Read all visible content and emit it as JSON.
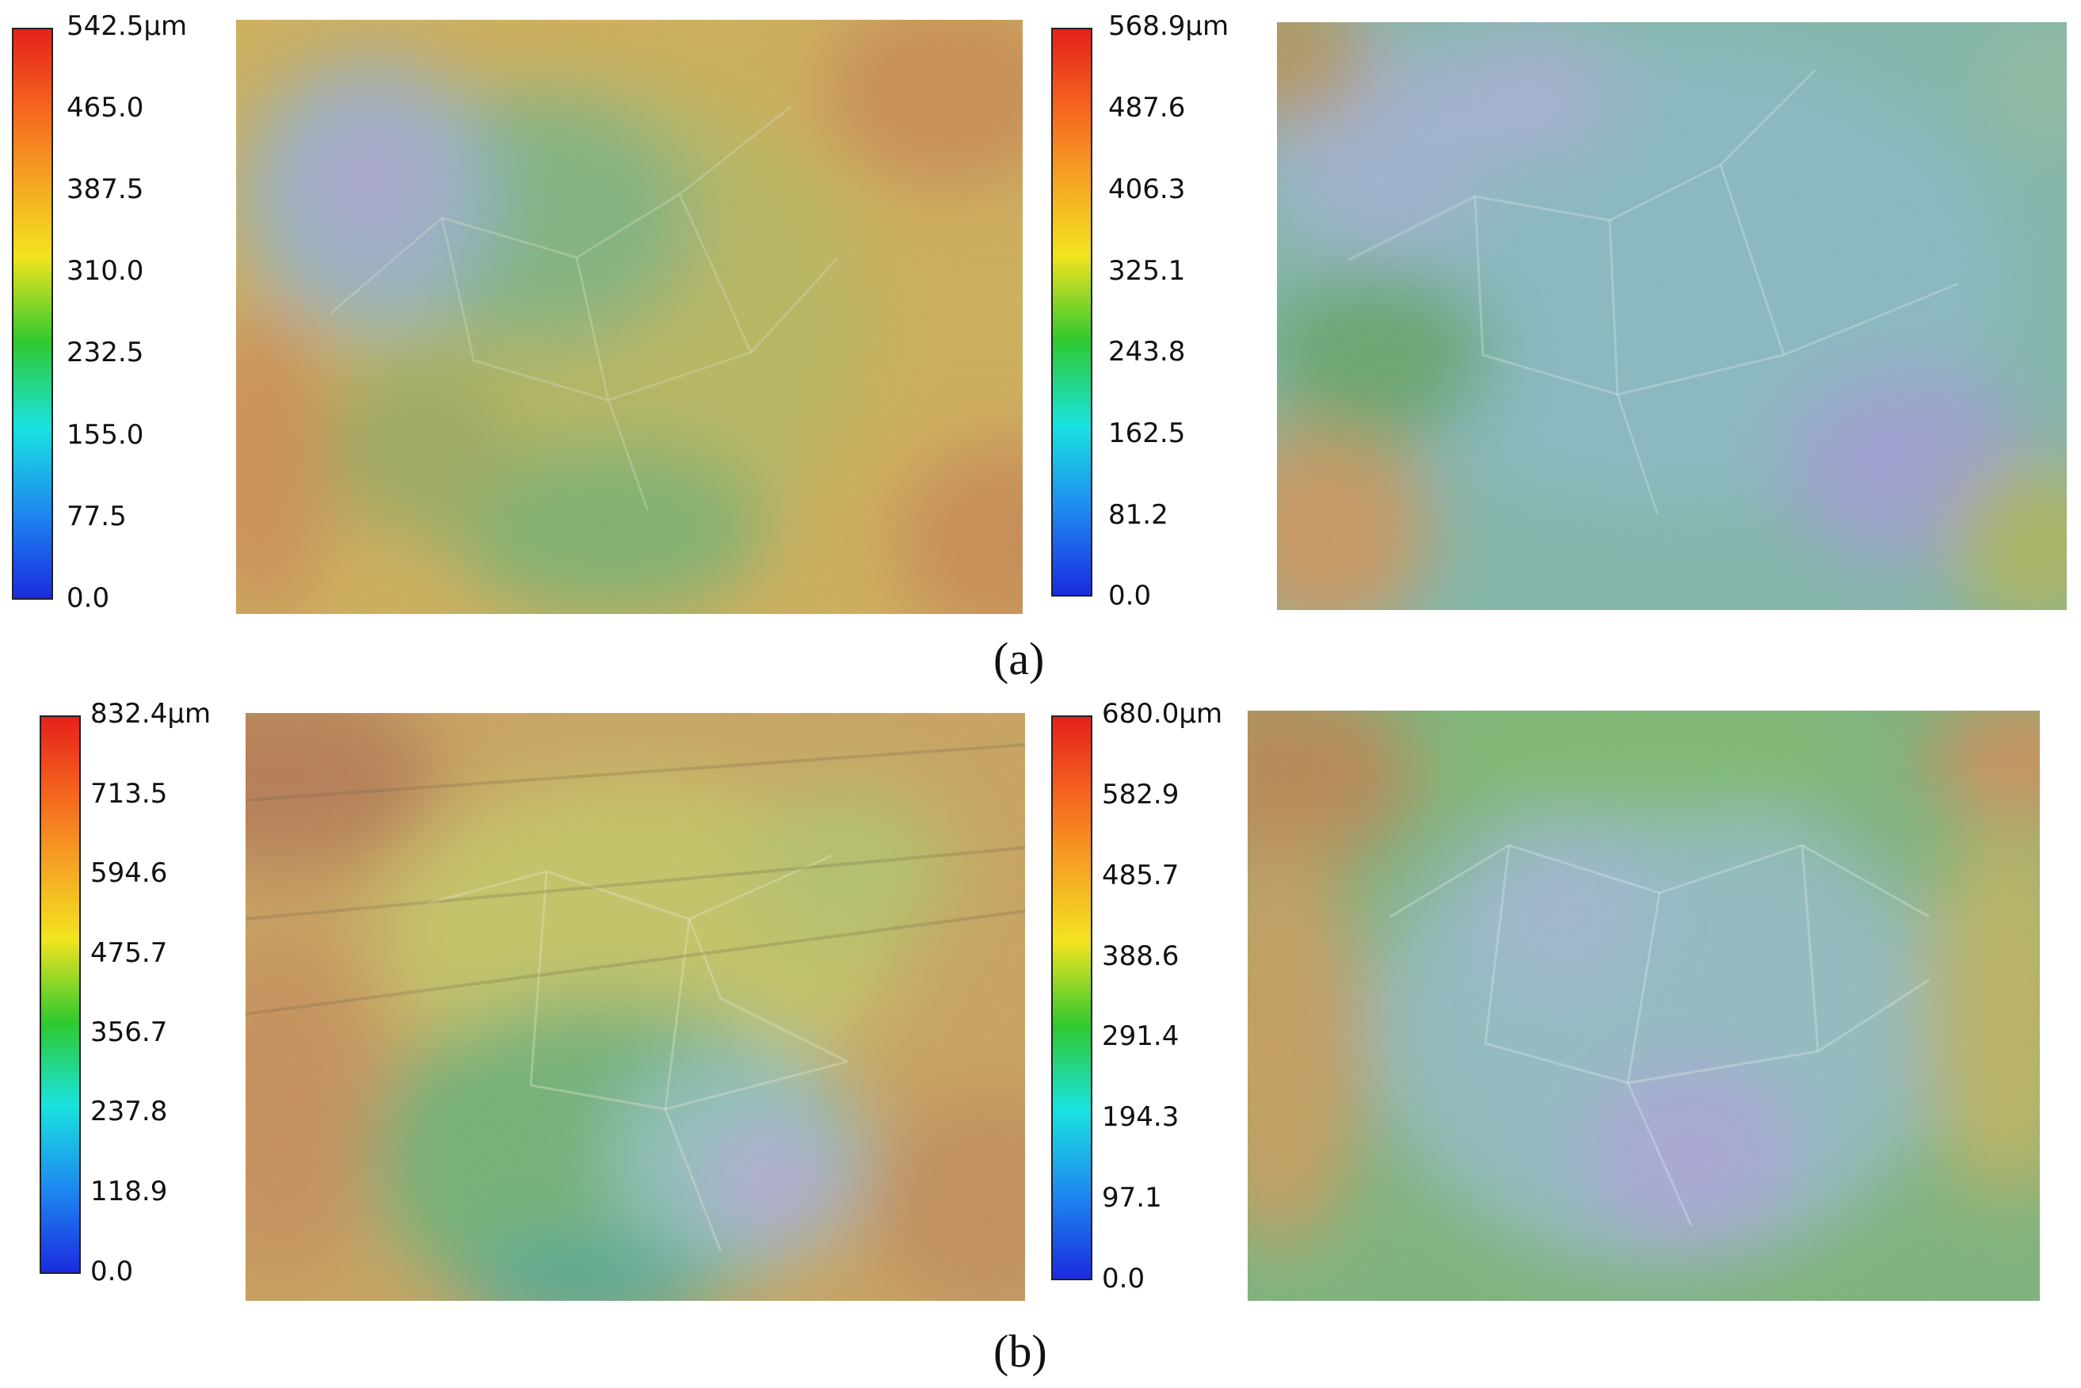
{
  "panels": [
    {
      "caption": "(a)",
      "maps": [
        {
          "scale_ticks": [
            "542.5μm",
            "465.0",
            "387.5",
            "310.0",
            "232.5",
            "155.0",
            "77.5",
            "0.0"
          ]
        },
        {
          "scale_ticks": [
            "568.9μm",
            "487.6",
            "406.3",
            "325.1",
            "243.8",
            "162.5",
            "81.2",
            "0.0"
          ]
        }
      ]
    },
    {
      "caption": "(b)",
      "maps": [
        {
          "scale_ticks": [
            "832.4μm",
            "713.5",
            "594.6",
            "475.7",
            "356.7",
            "237.8",
            "118.9",
            "0.0"
          ]
        },
        {
          "scale_ticks": [
            "680.0μm",
            "582.9",
            "485.7",
            "388.6",
            "291.4",
            "194.3",
            "97.1",
            "0.0"
          ]
        }
      ]
    }
  ],
  "colorscale": {
    "top": "#e6201c",
    "upper": "#f5a623",
    "middle_upper": "#f3e41f",
    "middle": "#2fc92f",
    "middle_lower": "#19e3e0",
    "lower": "#1e88f0",
    "bottom": "#1a2be0"
  }
}
